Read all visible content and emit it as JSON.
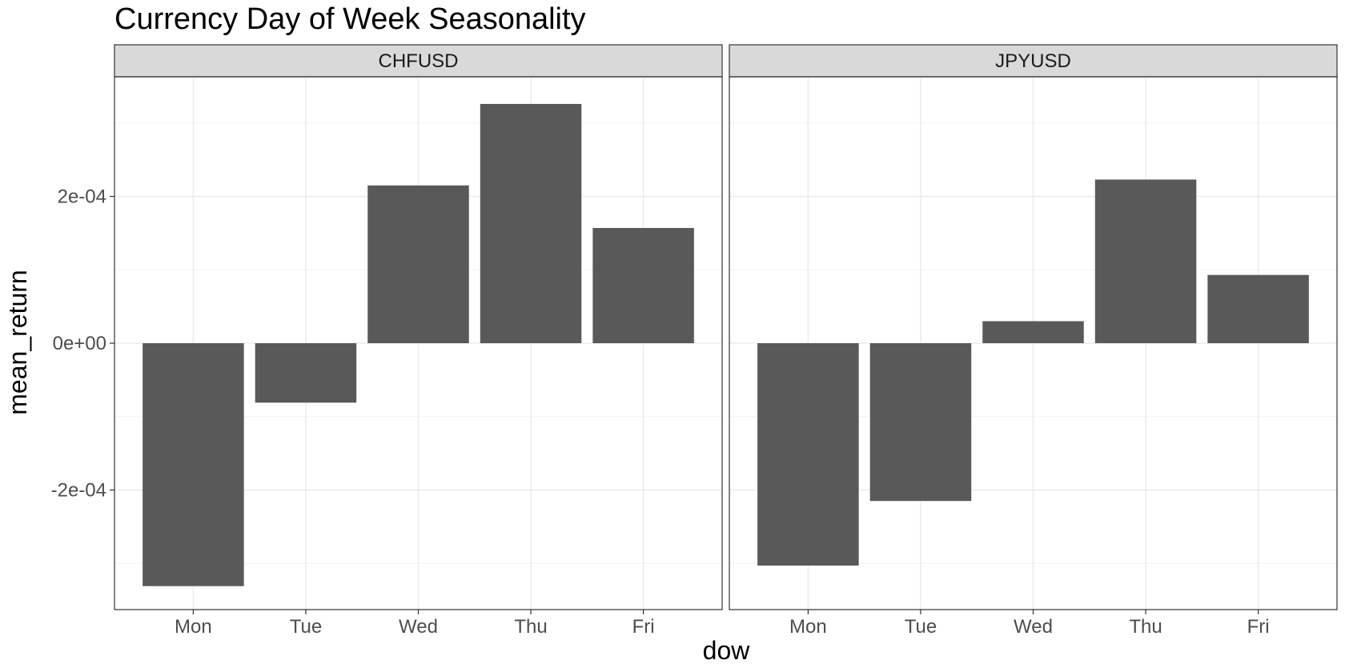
{
  "chart_data": {
    "type": "bar",
    "title": "Currency Day of Week Seasonality",
    "xlabel": "dow",
    "ylabel": "mean_return",
    "categories": [
      "Mon",
      "Tue",
      "Wed",
      "Thu",
      "Fri"
    ],
    "ylim": [
      -0.000363,
      0.000363
    ],
    "y_ticks": [
      -0.0002,
      0,
      0.0002
    ],
    "y_tick_labels": [
      "-2e-04",
      "0e+00",
      "2e-04"
    ],
    "grid": true,
    "legend": "none",
    "bar_color": "#595959",
    "facets": [
      {
        "name": "CHFUSD",
        "values": [
          -0.000331,
          -8.1e-05,
          0.000215,
          0.000326,
          0.000157
        ]
      },
      {
        "name": "JPYUSD",
        "values": [
          -0.000303,
          -0.000215,
          3e-05,
          0.000223,
          9.3e-05
        ]
      }
    ]
  }
}
